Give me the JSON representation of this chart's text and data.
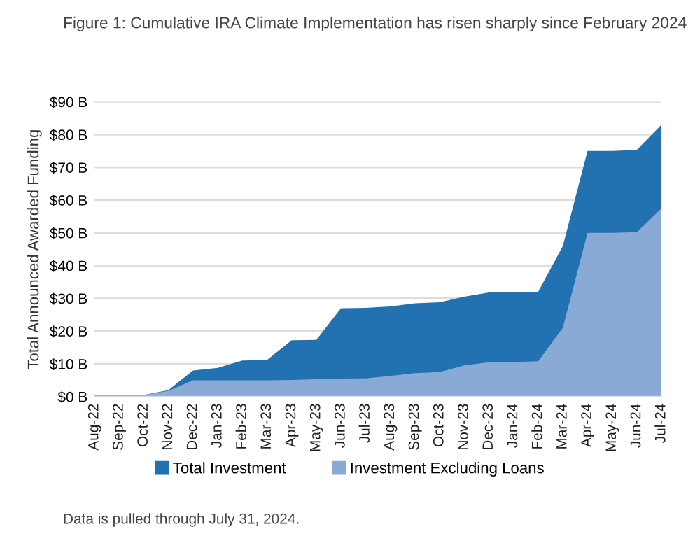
{
  "chart_data": {
    "type": "area",
    "title": "Figure 1: Cumulative IRA Climate Implementation has risen sharply since February 2024",
    "ylabel": "Total Announced Awarded Funding",
    "categories": [
      "Aug-22",
      "Sep-22",
      "Oct-22",
      "Nov-22",
      "Dec-22",
      "Jan-23",
      "Feb-23",
      "Mar-23",
      "Apr-23",
      "May-23",
      "Jun-23",
      "Jul-23",
      "Aug-23",
      "Sep-23",
      "Oct-23",
      "Nov-23",
      "Dec-23",
      "Jan-24",
      "Feb-24",
      "Mar-24",
      "Apr-24",
      "May-24",
      "Jun-24",
      "Jul-24"
    ],
    "series": [
      {
        "name": "Total Investment",
        "color": "#2271b0",
        "values": [
          0.5,
          0.5,
          0.5,
          2,
          8,
          8.8,
          11,
          11.2,
          17.2,
          17.3,
          27,
          27.1,
          27.5,
          28.5,
          28.8,
          30.5,
          31.8,
          32,
          32,
          46,
          75,
          75,
          75.3,
          83
        ]
      },
      {
        "name": "Investment Excluding Loans",
        "color": "#88aad5",
        "values": [
          0.5,
          0.5,
          0.5,
          1.8,
          5,
          5,
          5,
          5,
          5.1,
          5.3,
          5.5,
          5.6,
          6.3,
          7.2,
          7.5,
          9.5,
          10.5,
          10.6,
          10.8,
          21,
          50,
          50,
          50.2,
          57.5
        ]
      }
    ],
    "ylim": [
      0,
      90
    ],
    "yticks": [
      {
        "value": 0,
        "label": "$0 B"
      },
      {
        "value": 10,
        "label": "$10 B"
      },
      {
        "value": 20,
        "label": "$20 B"
      },
      {
        "value": 30,
        "label": "$30 B"
      },
      {
        "value": 40,
        "label": "$40 B"
      },
      {
        "value": 50,
        "label": "$50 B"
      },
      {
        "value": 60,
        "label": "$60 B"
      },
      {
        "value": 70,
        "label": "$70 B"
      },
      {
        "value": 80,
        "label": "$80 B"
      },
      {
        "value": 90,
        "label": "$90 B"
      }
    ],
    "grid": "y",
    "legend": "bottom",
    "annotations": [
      "Data is pulled through July 31, 2024."
    ]
  }
}
